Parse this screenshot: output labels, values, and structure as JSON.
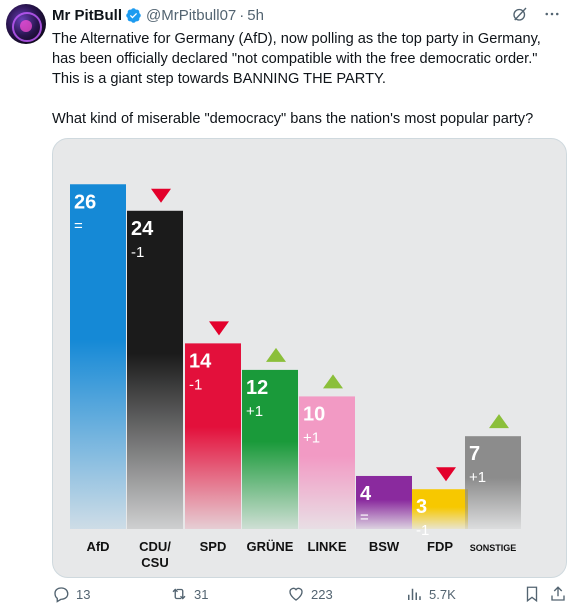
{
  "author": {
    "display_name": "Mr PitBull",
    "handle": "@MrPitbull07",
    "separator": "·",
    "time": "5h"
  },
  "tweet": {
    "paragraph1": "The Alternative for Germany (AfD), now polling as the top party in Germany, has been officially declared \"not compatible with the free democratic order.\" This is a giant step towards BANNING THE PARTY.",
    "paragraph2": "What kind of miserable \"democracy\" bans the nation's most popular party?"
  },
  "actions": {
    "replies": "13",
    "reposts": "31",
    "likes": "223",
    "views": "5.7K"
  },
  "colors": {
    "verified": "#1d9bf0",
    "up_arrow": "#8bbf3a",
    "down_arrow": "#e3002b"
  },
  "chart_data": {
    "type": "bar",
    "categories": [
      "AfD",
      "CDU/ CSU",
      "SPD",
      "GRÜNE",
      "LINKE",
      "BSW",
      "FDP",
      "SONSTIGE"
    ],
    "values": [
      26,
      24,
      14,
      12,
      10,
      4,
      3,
      7
    ],
    "value_labels": [
      "26",
      "24",
      "14",
      "12",
      "10",
      "4",
      "3",
      "7"
    ],
    "changes": [
      "=",
      "-1",
      "-1",
      "+1",
      "+1",
      "=",
      "-1",
      "+1"
    ],
    "trend": [
      "none",
      "down",
      "down",
      "up",
      "up",
      "none",
      "down",
      "up"
    ],
    "colors": [
      "#1589d6",
      "#1b1b1b",
      "#e3103b",
      "#1a9a3a",
      "#f29ac4",
      "#8a2a9e",
      "#f7c800",
      "#8c8c8c"
    ],
    "ylim": [
      0,
      27
    ]
  }
}
